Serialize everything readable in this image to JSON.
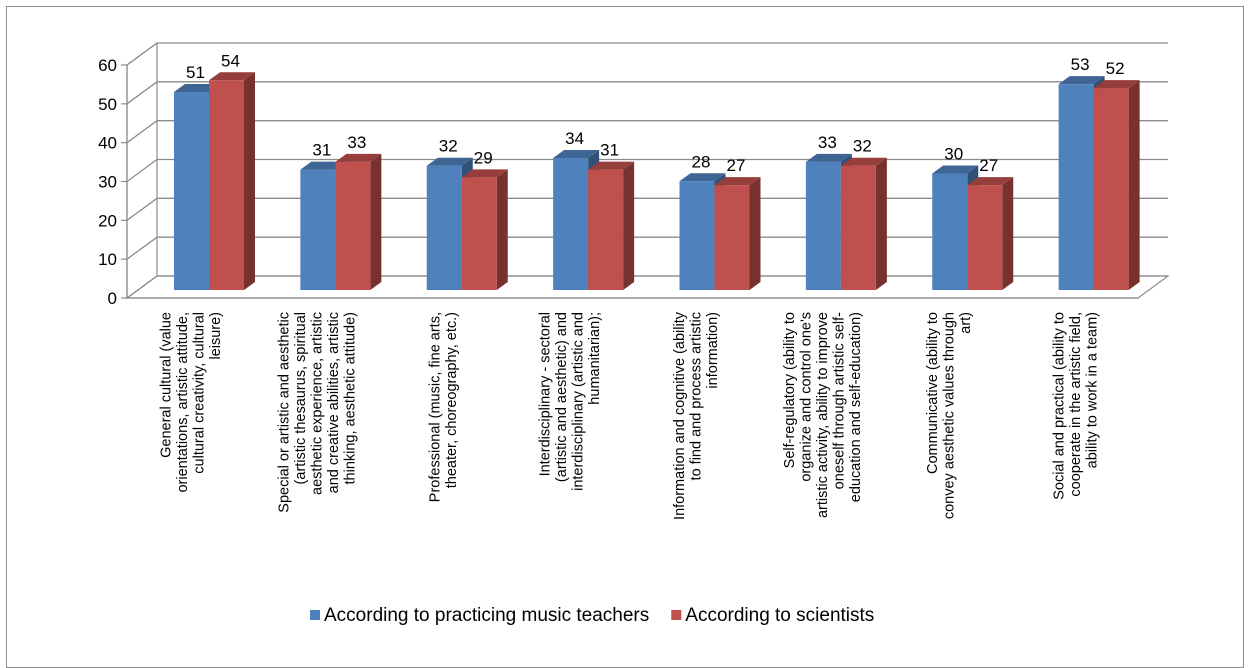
{
  "chart_data": {
    "type": "bar",
    "style": "3d-clustered-column",
    "ylim": [
      0,
      60
    ],
    "yticks": [
      "0",
      "10",
      "20",
      "30",
      "40",
      "50",
      "60"
    ],
    "grid": true,
    "legend_position": "bottom",
    "categories": [
      [
        "General cultural (value",
        "orientations, artistic attitude,",
        "cultural creativity, cultural",
        "leisure)"
      ],
      [
        "Special or artistic and aesthetic",
        "(artistic thesaurus, spiritual",
        "aesthetic experience, artistic",
        "and creative abilities, artistic",
        "thinking, aesthetic attitude)"
      ],
      [
        "Professional (music, fine arts,",
        "theater, choreography, etc.)"
      ],
      [
        "Interdisciplinary - sectoral",
        "(artistic and aesthetic) and",
        "interdisciplinary (artistic and",
        "humanitarian);"
      ],
      [
        "Information and cognitive (ability",
        "to find and process artistic",
        "information)"
      ],
      [
        "Self-regulatory (ability to",
        "organize and control one's",
        "artistic activity, ability to improve",
        "oneself through artistic self-",
        "education and self-education)"
      ],
      [
        "Communicative (ability to",
        "convey aesthetic values through",
        "art)"
      ],
      [
        "Social and practical (ability to",
        "cooperate in the artistic field,",
        "ability to work in a team)"
      ]
    ],
    "series": [
      {
        "name": "According to practicing music teachers",
        "color": "#4f81bd",
        "values": [
          51,
          31,
          32,
          34,
          28,
          33,
          30,
          53
        ]
      },
      {
        "name": "According to scientists",
        "color": "#c0504d",
        "values": [
          54,
          33,
          29,
          31,
          27,
          32,
          27,
          52
        ]
      }
    ]
  }
}
